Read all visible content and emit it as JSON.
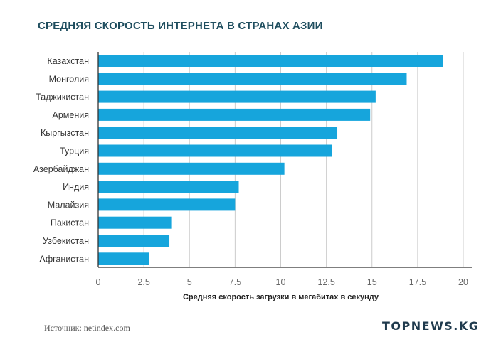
{
  "header": {
    "title": "СРЕДНЯЯ СКОРОСТЬ ИНТЕРНЕТА В СТРАНАХ АЗИИ"
  },
  "footer": {
    "source": "Источник: netindex.com",
    "logo": "TOPNEWS.KG"
  },
  "colors": {
    "bar": "#16a5dc",
    "title": "#1f4e5f",
    "grid": "#cccccc",
    "axis": "#333333"
  },
  "chart_data": {
    "type": "bar",
    "orientation": "horizontal",
    "title": "СРЕДНЯЯ СКОРОСТЬ ИНТЕРНЕТА В СТРАНАХ АЗИИ",
    "xlabel": "Средняя скорость загрузки в мегабитах в секунду",
    "ylabel": "",
    "categories": [
      "Казахстан",
      "Монголия",
      "Таджикистан",
      "Армения",
      "Кыргызстан",
      "Турция",
      "Азербайджан",
      "Индия",
      "Малайзия",
      "Пакистан",
      "Узбекистан",
      "Афганистан"
    ],
    "values": [
      18.9,
      16.9,
      15.2,
      14.9,
      13.1,
      12.8,
      10.2,
      7.7,
      7.5,
      4.0,
      3.9,
      2.8
    ],
    "xlim": [
      0,
      20
    ],
    "xticks": [
      "0",
      "2.5",
      "5",
      "7.5",
      "10",
      "12.5",
      "15",
      "17.5",
      "20"
    ],
    "grid": true,
    "legend": "none"
  }
}
